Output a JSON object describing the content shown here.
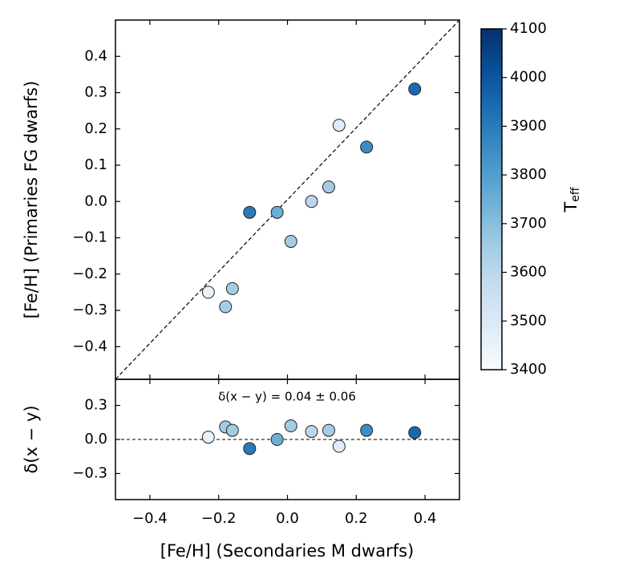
{
  "chart_data": [
    {
      "type": "scatter",
      "ylabel": "[Fe/H] (Primaries FG dwarfs)",
      "xlim": [
        -0.5,
        0.5
      ],
      "ylim": [
        -0.49,
        0.5
      ],
      "yticks": [
        {
          "value": -0.4,
          "label": "−0.4"
        },
        {
          "value": -0.3,
          "label": "−0.3"
        },
        {
          "value": -0.2,
          "label": "−0.2"
        },
        {
          "value": -0.1,
          "label": "−0.1"
        },
        {
          "value": 0.0,
          "label": "0.0"
        },
        {
          "value": 0.1,
          "label": "0.1"
        },
        {
          "value": 0.2,
          "label": "0.2"
        },
        {
          "value": 0.3,
          "label": "0.3"
        },
        {
          "value": 0.4,
          "label": "0.4"
        }
      ],
      "x": [
        -0.23,
        -0.18,
        -0.16,
        -0.11,
        -0.03,
        0.01,
        0.07,
        0.12,
        0.15,
        0.23,
        0.37
      ],
      "values": [
        -0.25,
        -0.29,
        -0.24,
        -0.03,
        -0.03,
        -0.11,
        0.0,
        0.04,
        0.21,
        0.15,
        0.31
      ],
      "c": [
        3450,
        3650,
        3650,
        3900,
        3750,
        3650,
        3600,
        3650,
        3480,
        3850,
        3950
      ],
      "colorbar": {
        "label": "T",
        "label_sub": "eff",
        "lim": [
          3400,
          4100
        ],
        "ticks": [
          3400,
          3500,
          3600,
          3700,
          3800,
          3900,
          4000,
          4100
        ],
        "colormap": [
          "#f7fbff",
          "#deebf7",
          "#c6dbef",
          "#9ecae1",
          "#6baed6",
          "#4292c6",
          "#2171b5",
          "#08519c",
          "#08306b"
        ]
      }
    },
    {
      "type": "scatter",
      "xlabel": "[Fe/H] (Secondaries M dwarfs)",
      "ylabel": "δ(x − y)",
      "annotation": "δ(x − y) = 0.04 ± 0.06",
      "xlim": [
        -0.5,
        0.5
      ],
      "ylim": [
        -0.53,
        0.53
      ],
      "xticks": [
        {
          "value": -0.4,
          "label": "−0.4"
        },
        {
          "value": -0.2,
          "label": "−0.2"
        },
        {
          "value": 0.0,
          "label": "0.0"
        },
        {
          "value": 0.2,
          "label": "0.2"
        },
        {
          "value": 0.4,
          "label": "0.4"
        }
      ],
      "yticks": [
        {
          "value": -0.3,
          "label": "−0.3"
        },
        {
          "value": 0.0,
          "label": "0.0"
        },
        {
          "value": 0.3,
          "label": "0.3"
        }
      ],
      "x": [
        -0.23,
        -0.18,
        -0.16,
        -0.11,
        -0.03,
        0.01,
        0.07,
        0.12,
        0.15,
        0.23,
        0.37
      ],
      "values": [
        0.02,
        0.11,
        0.08,
        -0.08,
        0.0,
        0.12,
        0.07,
        0.08,
        -0.06,
        0.08,
        0.06
      ],
      "c": [
        3450,
        3650,
        3650,
        3900,
        3750,
        3650,
        3600,
        3650,
        3480,
        3850,
        3950
      ]
    }
  ]
}
